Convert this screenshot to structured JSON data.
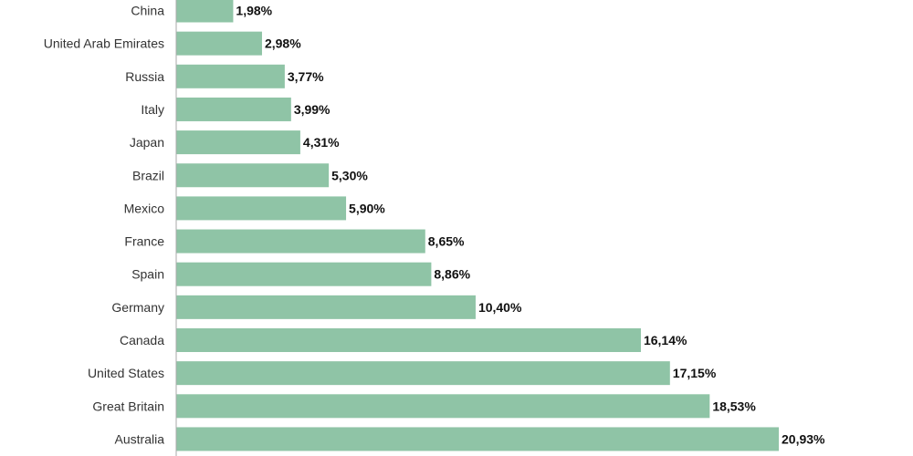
{
  "colors": {
    "bar": "#8fc4a6",
    "axis": "#aaaaaa"
  },
  "chart_data": {
    "type": "bar",
    "orientation": "horizontal",
    "categories": [
      "China",
      "United Arab Emirates",
      "Russia",
      "Italy",
      "Japan",
      "Brazil",
      "Mexico",
      "France",
      "Spain",
      "Germany",
      "Canada",
      "United States",
      "Great Britain",
      "Australia"
    ],
    "values": [
      1.98,
      2.98,
      3.77,
      3.99,
      4.31,
      5.3,
      5.9,
      8.65,
      8.86,
      10.4,
      16.14,
      17.15,
      18.53,
      20.93
    ],
    "value_labels": [
      "1,98%",
      "2,98%",
      "3,77%",
      "3,99%",
      "4,31%",
      "5,30%",
      "5,90%",
      "8,65%",
      "8,86%",
      "10,40%",
      "16,14%",
      "17,15%",
      "18,53%",
      "20,93%"
    ],
    "title": "",
    "xlabel": "",
    "ylabel": "",
    "xlim": [
      0,
      20.93
    ],
    "grid": false,
    "legend": "none"
  }
}
